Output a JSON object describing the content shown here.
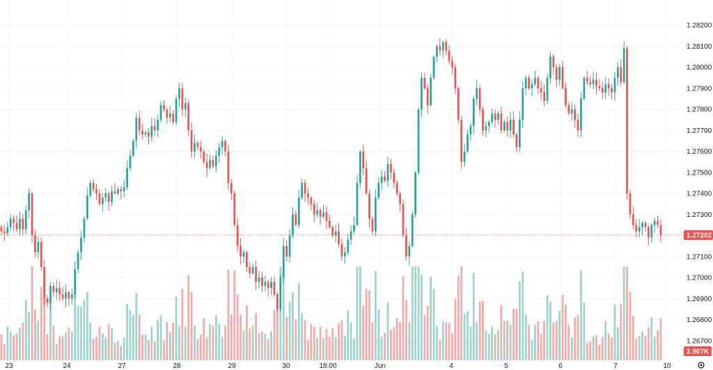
{
  "chart_data": {
    "type": "candlestick",
    "y_axis": {
      "ticks": [
        "1.28200",
        "1.28100",
        "1.28000",
        "1.27900",
        "1.27800",
        "1.27700",
        "1.27600",
        "1.27500",
        "1.27400",
        "1.27300",
        "1.27100",
        "1.27000",
        "1.26900",
        "1.26800",
        "1.26700"
      ],
      "range": [
        1.2662,
        1.283
      ]
    },
    "x_axis": {
      "ticks": [
        "23",
        "24",
        "27",
        "28",
        "29",
        "30",
        "18:00",
        "Jun",
        "4",
        "5",
        "6",
        "7",
        "10"
      ]
    },
    "last_price": {
      "value": 1.27202,
      "label": "1.27202"
    },
    "volume_label": "2.907K",
    "colors": {
      "up": "#26a69a",
      "down": "#ef5350",
      "up_volume": "#9bd4cd",
      "down_volume": "#f6a9a7",
      "grid": "#f0f3fa",
      "price_line": "#ef5350"
    },
    "closes": [
      1.2722,
      1.2721,
      1.2724,
      1.2728,
      1.2726,
      1.2723,
      1.2728,
      1.2723,
      1.2732,
      1.274,
      1.272,
      1.2712,
      1.2717,
      1.2705,
      1.269,
      1.2688,
      1.2696,
      1.2693,
      1.2695,
      1.2692,
      1.269,
      1.2693,
      1.269,
      1.2692,
      1.2704,
      1.2712,
      1.2719,
      1.2728,
      1.2739,
      1.2745,
      1.2742,
      1.274,
      1.2735,
      1.2738,
      1.274,
      1.2736,
      1.2741,
      1.274,
      1.2742,
      1.2741,
      1.2743,
      1.2752,
      1.2758,
      1.2765,
      1.2776,
      1.277,
      1.2768,
      1.2769,
      1.2767,
      1.2772,
      1.277,
      1.2775,
      1.2782,
      1.278,
      1.2776,
      1.2778,
      1.2774,
      1.2785,
      1.279,
      1.278,
      1.2783,
      1.277,
      1.276,
      1.2764,
      1.2762,
      1.276,
      1.2755,
      1.2752,
      1.2756,
      1.2753,
      1.2758,
      1.2762,
      1.2765,
      1.276,
      1.2745,
      1.274,
      1.2725,
      1.2715,
      1.271,
      1.2712,
      1.2705,
      1.2702,
      1.2705,
      1.2698,
      1.27,
      1.2696,
      1.2698,
      1.2695,
      1.2698,
      1.2692,
      1.2685,
      1.27,
      1.2715,
      1.271,
      1.272,
      1.273,
      1.2725,
      1.2738,
      1.2745,
      1.274,
      1.2738,
      1.2735,
      1.273,
      1.2732,
      1.2729,
      1.2731,
      1.2727,
      1.2724,
      1.272,
      1.2722,
      1.2716,
      1.271,
      1.2712,
      1.2718,
      1.2722,
      1.2725,
      1.2745,
      1.276,
      1.2752,
      1.274,
      1.2728,
      1.2722,
      1.2738,
      1.2745,
      1.2748,
      1.2746,
      1.2754,
      1.275,
      1.2745,
      1.274,
      1.2735,
      1.272,
      1.271,
      1.2715,
      1.273,
      1.275,
      1.278,
      1.2795,
      1.279,
      1.2782,
      1.2795,
      1.2805,
      1.281,
      1.2808,
      1.2812,
      1.2808,
      1.2803,
      1.28,
      1.279,
      1.2775,
      1.2755,
      1.276,
      1.2768,
      1.2772,
      1.2785,
      1.279,
      1.278,
      1.277,
      1.2772,
      1.2774,
      1.2778,
      1.2775,
      1.2778,
      1.277,
      1.2774,
      1.277,
      1.2775,
      1.2768,
      1.2762,
      1.2775,
      1.279,
      1.2795,
      1.279,
      1.2792,
      1.2795,
      1.279,
      1.2788,
      1.2784,
      1.2795,
      1.2805,
      1.28,
      1.2794,
      1.28,
      1.279,
      1.2782,
      1.2778,
      1.278,
      1.2775,
      1.277,
      1.2785,
      1.2795,
      1.2793,
      1.2792,
      1.2794,
      1.2791,
      1.279,
      1.2788,
      1.2792,
      1.279,
      1.2788,
      1.2795,
      1.28,
      1.2793,
      1.2809,
      1.274,
      1.273,
      1.2725,
      1.2722,
      1.2724,
      1.2726,
      1.2724,
      1.2719,
      1.2725,
      1.2727,
      1.2725,
      1.272
    ]
  }
}
